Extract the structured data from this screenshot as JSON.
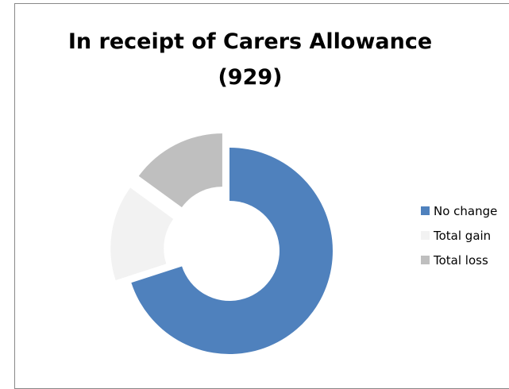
{
  "chart_data": {
    "type": "donut",
    "title_lines": [
      "In receipt of Carers Allowance",
      "(929)"
    ],
    "categories": [
      "No change",
      "Total gain",
      "Total loss"
    ],
    "values": [
      70,
      15,
      15
    ],
    "colors": [
      "#4f81bd",
      "#f2f2f2",
      "#bfbfbf"
    ],
    "legend_position": "right"
  }
}
